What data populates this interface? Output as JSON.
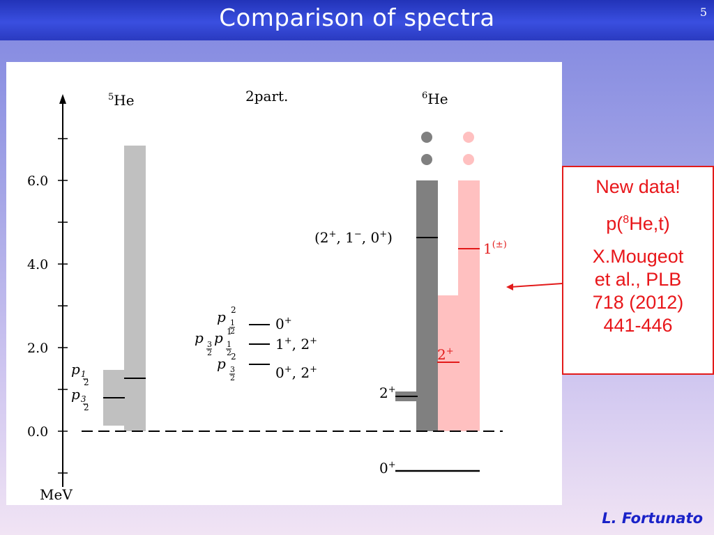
{
  "slide": {
    "title": "Comparison  of  spectra",
    "number": "5",
    "author": "L. Fortunato"
  },
  "callout": {
    "line1": "New  data!",
    "line2_pre": "p(",
    "line2_sup": "8",
    "line2_post": "He,t)",
    "line3": "X.Mougeot",
    "line4": "et al., PLB",
    "line5": "718 (2012)",
    "line6": "441-446"
  },
  "diagram": {
    "axis_unit": "MeV",
    "ticks": [
      "0.0",
      "2.0",
      "4.0",
      "6.0"
    ],
    "column_headers": {
      "he5_sup": "5",
      "he5": "He",
      "two_part": "2part.",
      "he6_sup": "6",
      "he6": "He"
    },
    "he5_labels": {
      "p12": "p",
      "p32": "p"
    },
    "two_part_labels": [
      {
        "config": "p",
        "state": "0",
        "state_sup": "+"
      },
      {
        "config": "pp",
        "state": "1",
        "state_sup": "+",
        "state2": ", 2",
        "state2_sup": "+"
      },
      {
        "config": "p",
        "state": "0",
        "state_sup": "+",
        "state2": ", 2",
        "state2_sup": "+"
      }
    ],
    "he6_labels": {
      "resonance_group": "(2",
      "resonance_group_mid1": ", 1",
      "resonance_group_mid2": ", 0",
      "resonance_group_end": ")",
      "first_excited": "2",
      "ground": "0",
      "new_2plus": "2",
      "new_1": "1",
      "new_1_sup": "(±)"
    },
    "colors": {
      "he5_bar": "#c0c0c0",
      "he6_bar": "#808080",
      "new_data_bar": "#ffc0c0",
      "new_data_line": "#e21a1a",
      "callout_border": "#e21a1a"
    }
  }
}
